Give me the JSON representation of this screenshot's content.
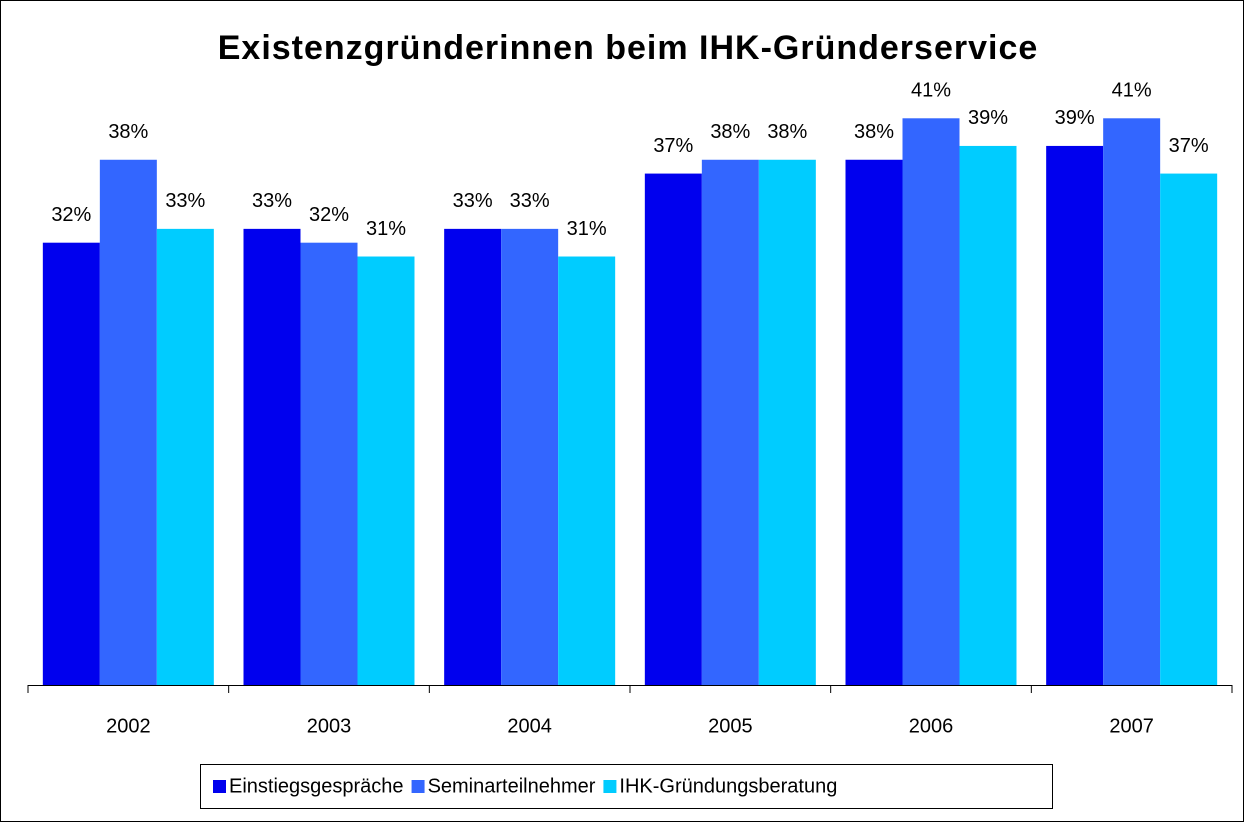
{
  "chart_data": {
    "type": "bar",
    "title": "Existenzgründerinnen beim IHK-Gründerservice",
    "categories": [
      "2002",
      "2003",
      "2004",
      "2005",
      "2006",
      "2007"
    ],
    "series": [
      {
        "name": "Einstiegsgespräche",
        "color": "#0000ee",
        "values": [
          32,
          33,
          33,
          37,
          38,
          39
        ],
        "value_labels": [
          "32%",
          "33%",
          "33%",
          "37%",
          "38%",
          "39%"
        ]
      },
      {
        "name": "Seminarteilnehmer",
        "color": "#3366ff",
        "values": [
          38,
          32,
          33,
          38,
          41,
          41
        ],
        "value_labels": [
          "38%",
          "32%",
          "33%",
          "38%",
          "41%",
          "41%"
        ]
      },
      {
        "name": "IHK-Gründungsberatung",
        "color": "#00ccff",
        "values": [
          33,
          31,
          31,
          38,
          39,
          37
        ],
        "value_labels": [
          "33%",
          "31%",
          "31%",
          "38%",
          "39%",
          "37%"
        ]
      }
    ],
    "ylim": [
      0,
      45
    ],
    "legend": "bottom"
  }
}
